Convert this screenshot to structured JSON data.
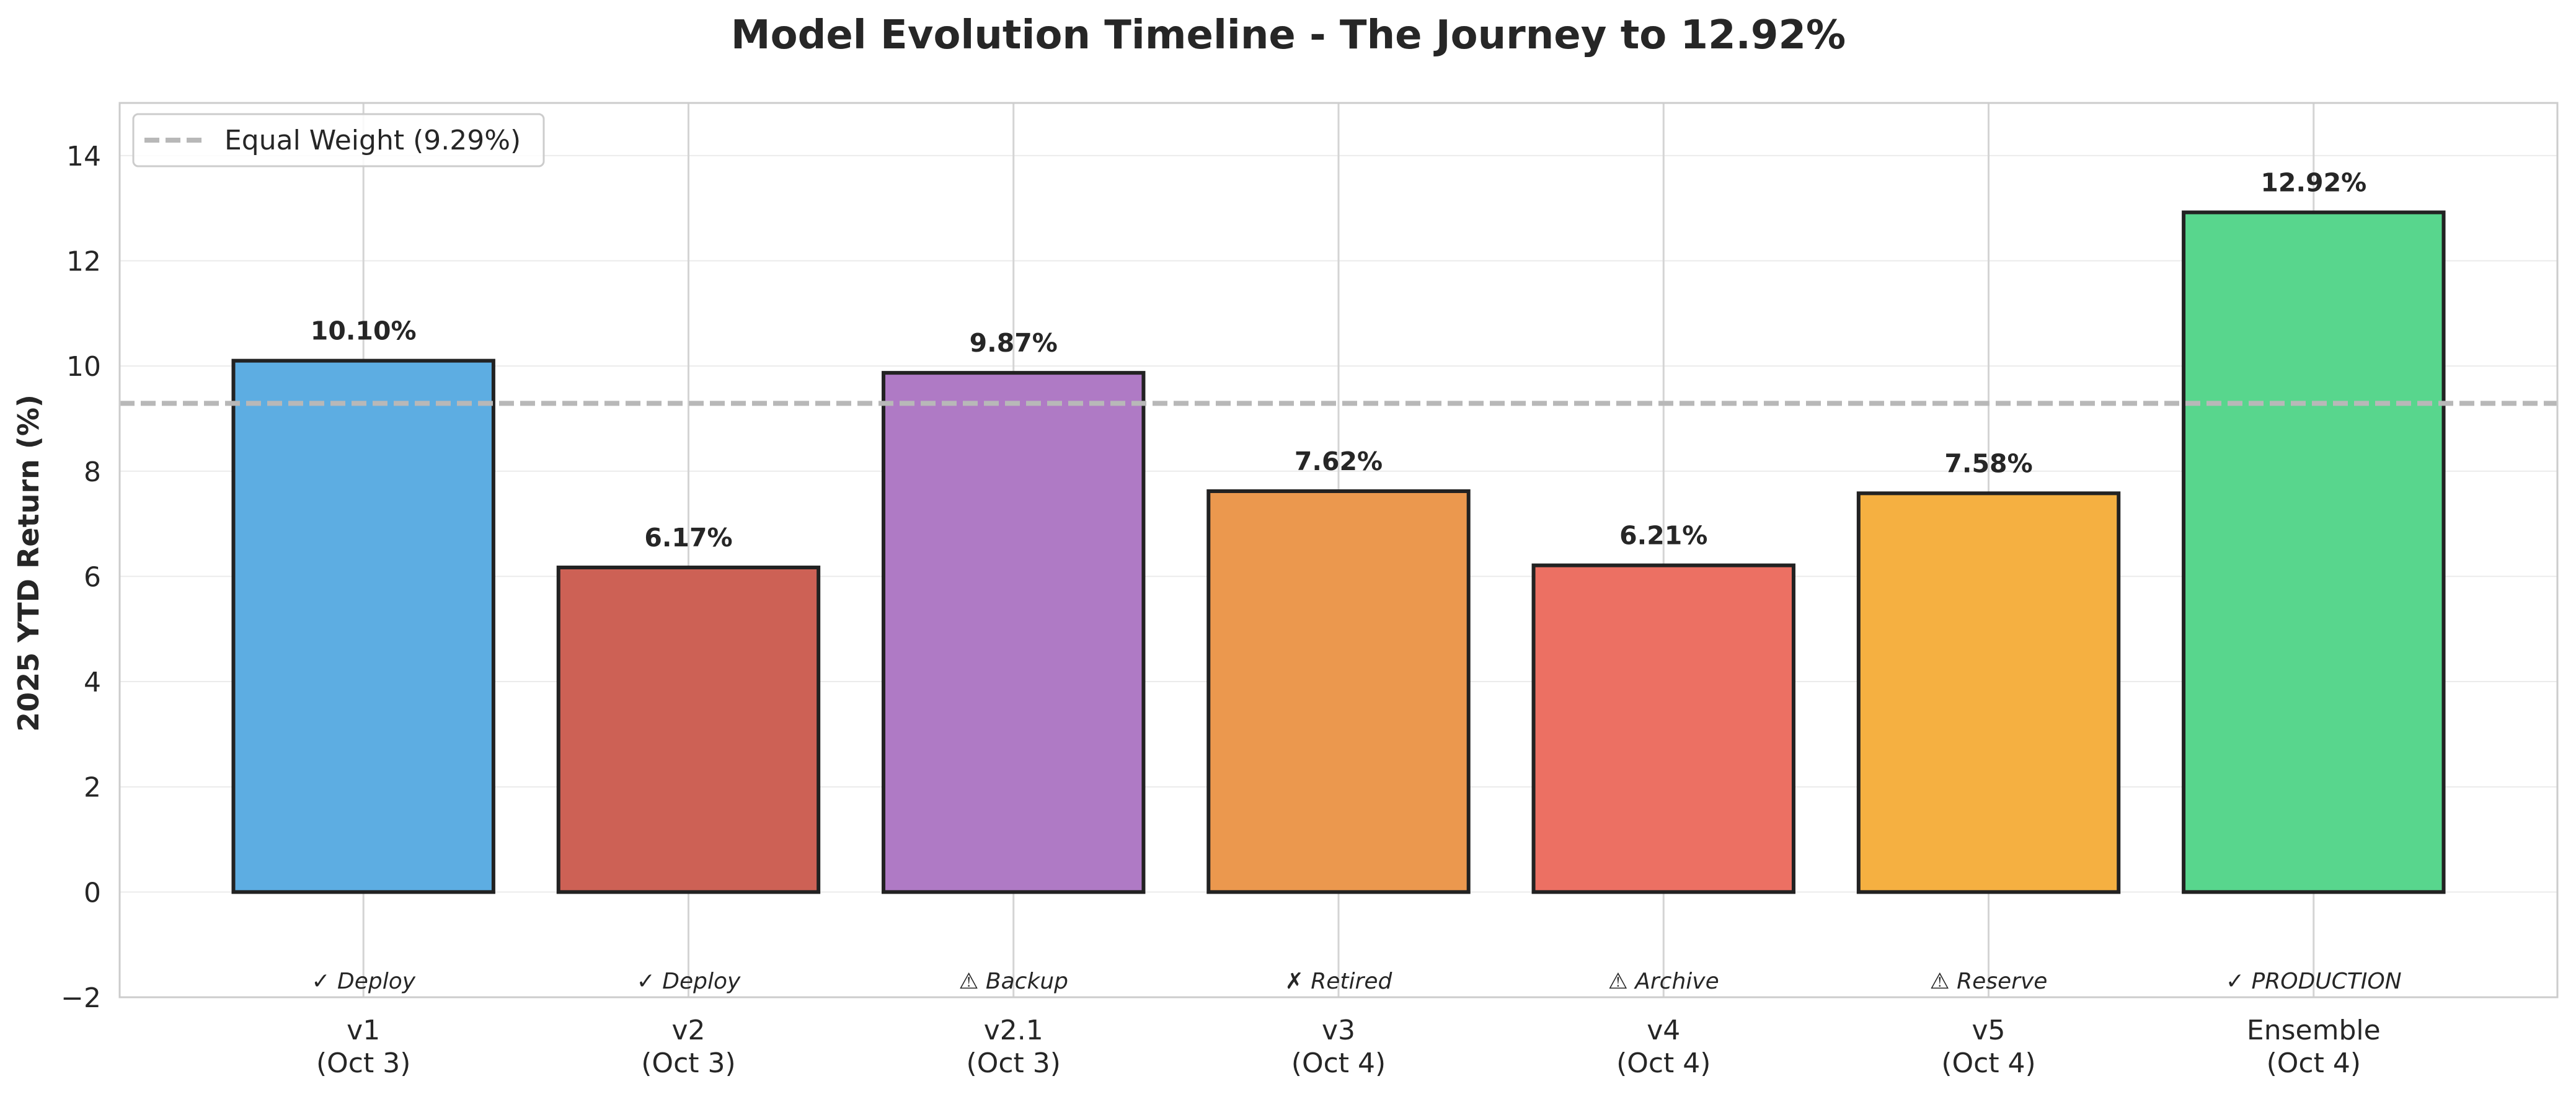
{
  "chart_data": {
    "type": "bar",
    "title": "Model Evolution Timeline - The Journey to 12.92%",
    "xlabel": "",
    "ylabel": "2025 YTD Return (%)",
    "ylim": [
      -2,
      15
    ],
    "yticks": [
      -2,
      0,
      2,
      4,
      6,
      8,
      10,
      12,
      14
    ],
    "ytick_labels": [
      "−2",
      "0",
      "2",
      "4",
      "6",
      "8",
      "10",
      "12",
      "14"
    ],
    "grid": true,
    "legend_position": "top-left",
    "categories": [
      [
        "v1",
        "(Oct 3)"
      ],
      [
        "v2",
        "(Oct 3)"
      ],
      [
        "v2.1",
        "(Oct 3)"
      ],
      [
        "v3",
        "(Oct 4)"
      ],
      [
        "v4",
        "(Oct 4)"
      ],
      [
        "v5",
        "(Oct 4)"
      ],
      [
        "Ensemble",
        "(Oct 4)"
      ]
    ],
    "values": [
      10.1,
      6.17,
      9.87,
      7.62,
      6.21,
      7.58,
      12.92
    ],
    "value_labels": [
      "10.10%",
      "6.17%",
      "9.87%",
      "7.62%",
      "6.21%",
      "7.58%",
      "12.92%"
    ],
    "status_labels": [
      "✓ Deploy",
      "✓ Deploy",
      "⚠ Backup",
      "✗ Retired",
      "⚠ Archive",
      "⚠ Reserve",
      "✓ PRODUCTION"
    ],
    "colors": [
      "#5DADE2",
      "#CD6155",
      "#AF7AC5",
      "#EB984E",
      "#EC7063",
      "#F5B041",
      "#58D68D"
    ],
    "reference_line": {
      "value": 9.29,
      "label": "Equal Weight (9.29%)",
      "color": "#b8b8b8"
    }
  }
}
